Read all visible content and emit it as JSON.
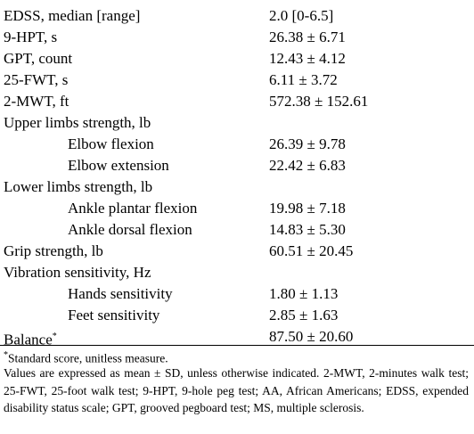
{
  "table": {
    "rows": [
      {
        "label": "EDSS, median [range]",
        "value": "2.0 [0-6.5]"
      },
      {
        "label": "9-HPT, s",
        "value": "26.38 ± 6.71"
      },
      {
        "label": "GPT, count",
        "value": "12.43 ± 4.12"
      },
      {
        "label": "25-FWT, s",
        "value": "6.11 ± 3.72"
      },
      {
        "label": "2-MWT, ft",
        "value": "572.38 ± 152.61"
      },
      {
        "label": "Upper limbs strength, lb",
        "items": [
          {
            "label": "Elbow flexion",
            "value": "26.39 ± 9.78"
          },
          {
            "label": "Elbow extension",
            "value": "22.42 ± 6.83"
          }
        ]
      },
      {
        "label": "Lower limbs strength, lb",
        "items": [
          {
            "label": "Ankle plantar flexion",
            "value": "19.98 ± 7.18"
          },
          {
            "label": "Ankle dorsal flexion",
            "value": "14.83 ± 5.30"
          }
        ]
      },
      {
        "label": "Grip strength, lb",
        "value": "60.51 ± 20.45"
      },
      {
        "label": "Vibration sensitivity, Hz",
        "items": [
          {
            "label": "Hands sensitivity",
            "value": "1.80 ± 1.13"
          },
          {
            "label": "Feet sensitivity",
            "value": "2.85 ± 1.63"
          }
        ]
      },
      {
        "label": "Balance",
        "note": "*",
        "value": "87.50 ± 20.60"
      }
    ]
  },
  "footnotes": {
    "marker": "*",
    "note": "Standard score, unitless measure.",
    "abbreviations": "Values are expressed as mean ± SD, unless otherwise indicated. 2-MWT, 2-minutes walk test; 25-FWT, 25-foot walk test; 9-HPT, 9-hole peg test; AA, African Americans; EDSS, expended disability status scale; GPT, grooved pegboard test; MS, multiple sclerosis."
  }
}
